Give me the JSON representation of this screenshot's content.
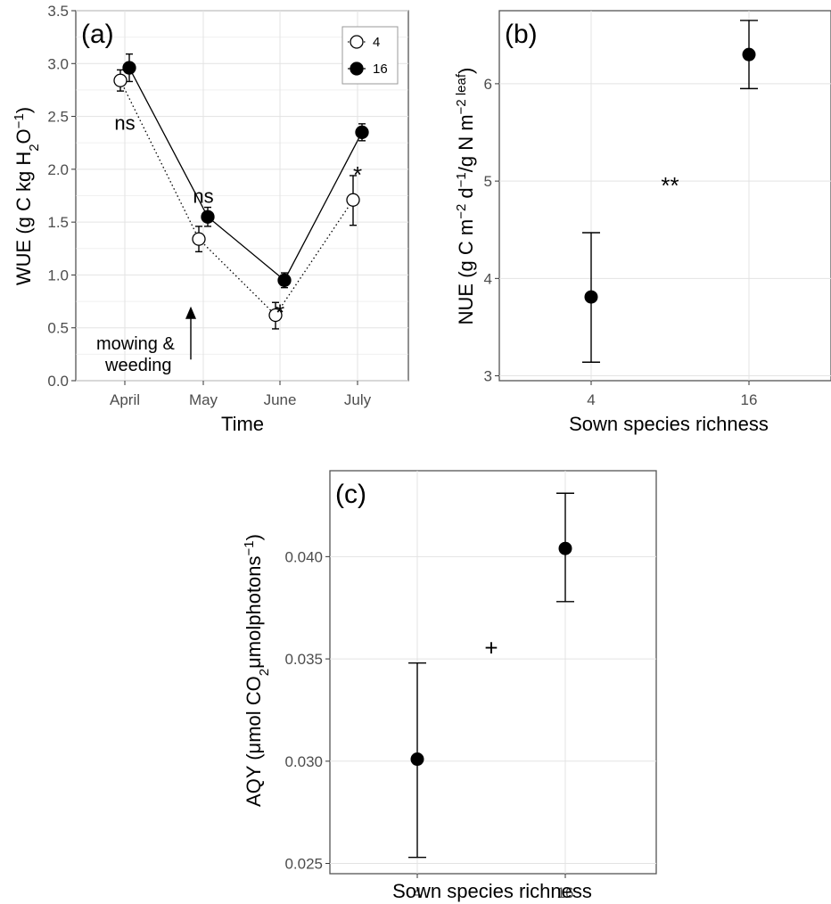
{
  "chart_data": [
    {
      "type": "line",
      "panel_label": "(a)",
      "xlabel": "Time",
      "ylabel_main": "WUE (g C kg H",
      "ylabel_sub": "2",
      "ylabel_mid": "O",
      "ylabel_sup": "−1",
      "ylabel_end": ")",
      "categories": [
        "April",
        "May",
        "June",
        "July"
      ],
      "ylim": [
        0,
        3.5
      ],
      "yticks": [
        "0.0",
        "0.5",
        "1.0",
        "1.5",
        "2.0",
        "2.5",
        "3.0",
        "3.5"
      ],
      "ytick_values": [
        0,
        0.5,
        1.0,
        1.5,
        2.0,
        2.5,
        3.0,
        3.5
      ],
      "grid": true,
      "legend_position": "top-right",
      "series": [
        {
          "name": "4",
          "marker": "open-circle",
          "line": "dotted",
          "values": [
            2.84,
            1.34,
            0.62,
            1.71
          ],
          "err_low": [
            2.74,
            1.22,
            0.49,
            1.47
          ],
          "err_high": [
            2.94,
            1.46,
            0.74,
            1.94
          ]
        },
        {
          "name": "16",
          "marker": "filled-circle",
          "line": "solid",
          "values": [
            2.96,
            1.55,
            0.95,
            2.35
          ],
          "err_low": [
            2.83,
            1.46,
            0.88,
            2.27
          ],
          "err_high": [
            3.09,
            1.64,
            1.02,
            2.43
          ]
        }
      ],
      "annotations": [
        {
          "text": "ns",
          "category": "April",
          "y": 2.44
        },
        {
          "text": "ns",
          "category": "May",
          "y": 1.75
        },
        {
          "text": "*",
          "category": "June",
          "y": 0.74
        },
        {
          "text": "*",
          "category": "July",
          "y": 2.04
        }
      ],
      "event_label_line1": "mowing &",
      "event_label_line2": "weeding",
      "event_arrow_value": 0.55
    },
    {
      "type": "scatter",
      "panel_label": "(b)",
      "xlabel": "Sown species richness",
      "ylabel_parts": [
        "NUE (g C m",
        "−2",
        " d",
        "−1",
        "/g N m",
        "−2 leaf",
        ")"
      ],
      "categories": [
        "4",
        "16"
      ],
      "ylim": [
        2.95,
        6.75
      ],
      "yticks": [
        "3",
        "4",
        "5",
        "6"
      ],
      "ytick_values": [
        3,
        4,
        5,
        6
      ],
      "grid": true,
      "values": [
        3.81,
        6.3
      ],
      "err_low": [
        3.14,
        5.95
      ],
      "err_high": [
        4.47,
        6.65
      ],
      "significance": "**",
      "significance_y": 5.0
    },
    {
      "type": "scatter",
      "panel_label": "(c)",
      "xlabel": "Sown species richness",
      "ylabel_parts": [
        "AQY (μmol CO",
        "2",
        "μmolphotons",
        "−1",
        ")"
      ],
      "categories": [
        "4",
        "16"
      ],
      "ylim": [
        0.0245,
        0.0442
      ],
      "yticks": [
        "0.025",
        "0.030",
        "0.035",
        "0.040"
      ],
      "ytick_values": [
        0.025,
        0.03,
        0.035,
        0.04
      ],
      "grid": true,
      "values": [
        0.0301,
        0.0404
      ],
      "err_low": [
        0.0253,
        0.0378
      ],
      "err_high": [
        0.0348,
        0.0431
      ],
      "significance": "+",
      "significance_y": 0.0355
    }
  ]
}
